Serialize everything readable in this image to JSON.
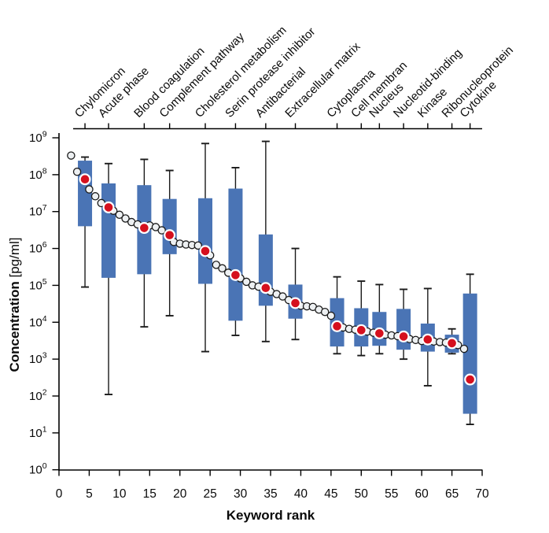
{
  "figure": {
    "xlabel": "Keyword rank",
    "ylabel_main": "Concentration",
    "ylabel_unit": "[pg/ml]"
  },
  "chart_data": {
    "type": "box",
    "title": "",
    "xlabel": "Keyword rank",
    "ylabel": "Concentration [pg/ml]",
    "x_axis": {
      "min": 0,
      "max": 70,
      "ticks": [
        0,
        5,
        10,
        15,
        20,
        25,
        30,
        35,
        40,
        45,
        50,
        55,
        60,
        65,
        70
      ]
    },
    "y_axis": {
      "scale": "log10",
      "min": 1,
      "max": 1000000000,
      "tick_exponents": [
        0,
        1,
        2,
        3,
        4,
        5,
        6,
        7,
        8,
        9
      ]
    },
    "grid": false,
    "legend": false,
    "colors": {
      "box_fill": "#4a74b5",
      "whisker": "#1a1a1a",
      "median_dot": "#d5101e",
      "median_ring": "#ffffff",
      "trend_fill": "#edf0f2",
      "trend_edge": "#1a1a1a",
      "axis": "#000000"
    },
    "categories": [
      "Chylomicron",
      "Acute phase",
      "Blood coagulation",
      "Complement pathway",
      "Cholesterol metabolism",
      "Serin protease inhibitor",
      "Antibacterial",
      "Extracellular matrix",
      "Cytoplasma",
      "Cell membran",
      "Nucleus",
      "Nucleotid-binding",
      "Kinase",
      "Ribonucleoprotein",
      "Cytokine"
    ],
    "boxes": [
      {
        "category": "Chylomicron",
        "rank": 4.3,
        "whisker_low": 90000.0,
        "q1": 4000000.0,
        "median": 75000000.0,
        "q3": 240000000.0,
        "whisker_high": 300000000.0
      },
      {
        "category": "Acute phase",
        "rank": 8.2,
        "whisker_low": 110.0,
        "q1": 160000.0,
        "median": 13000000.0,
        "q3": 58000000.0,
        "whisker_high": 200000000.0
      },
      {
        "category": "Blood coagulation",
        "rank": 14.1,
        "whisker_low": 7500.0,
        "q1": 200000.0,
        "median": 3600000.0,
        "q3": 52000000.0,
        "whisker_high": 260000000.0
      },
      {
        "category": "Complement pathway",
        "rank": 18.3,
        "whisker_low": 15000.0,
        "q1": 700000.0,
        "median": 2300000.0,
        "q3": 22000000.0,
        "whisker_high": 130000000.0
      },
      {
        "category": "Cholesterol metabolism",
        "rank": 24.2,
        "whisker_low": 1600.0,
        "q1": 110000.0,
        "median": 850000.0,
        "q3": 23000000.0,
        "whisker_high": 700000000.0
      },
      {
        "category": "Serin protease inhibitor",
        "rank": 29.2,
        "whisker_low": 4400.0,
        "q1": 11000.0,
        "median": 190000.0,
        "q3": 42000000.0,
        "whisker_high": 155000000.0
      },
      {
        "category": "Antibacterial",
        "rank": 34.2,
        "whisker_low": 3000.0,
        "q1": 28000.0,
        "median": 85000.0,
        "q3": 2400000.0,
        "whisker_high": 800000000.0
      },
      {
        "category": "Extracellular matrix",
        "rank": 39.1,
        "whisker_low": 3400.0,
        "q1": 12500.0,
        "median": 33000.0,
        "q3": 105000.0,
        "whisker_high": 1000000.0
      },
      {
        "category": "Cytoplasma",
        "rank": 46.0,
        "whisker_low": 1400.0,
        "q1": 2200.0,
        "median": 7800.0,
        "q3": 45000.0,
        "whisker_high": 170000.0
      },
      {
        "category": "Cell membran",
        "rank": 50.0,
        "whisker_low": 1250.0,
        "q1": 2200.0,
        "median": 6100.0,
        "q3": 24000.0,
        "whisker_high": 130000.0
      },
      {
        "category": "Nucleus",
        "rank": 53.0,
        "whisker_low": 1400.0,
        "q1": 2300.0,
        "median": 5000.0,
        "q3": 19000.0,
        "whisker_high": 105000.0
      },
      {
        "category": "Nucleotid-binding",
        "rank": 57.0,
        "whisker_low": 1000.0,
        "q1": 1800.0,
        "median": 4100.0,
        "q3": 23000.0,
        "whisker_high": 78000.0
      },
      {
        "category": "Kinase",
        "rank": 61.0,
        "whisker_low": 190.0,
        "q1": 1600.0,
        "median": 3400.0,
        "q3": 9200.0,
        "whisker_high": 82000.0
      },
      {
        "category": "Ribonucleoprotein",
        "rank": 65.0,
        "whisker_low": 1400.0,
        "q1": 1500.0,
        "median": 2700.0,
        "q3": 4600.0,
        "whisker_high": 6600.0
      },
      {
        "category": "Cytokine",
        "rank": 68.0,
        "whisker_low": 17.0,
        "q1": 33.0,
        "median": 280.0,
        "q3": 60000.0,
        "whisker_high": 200000.0
      }
    ],
    "trend_points": [
      [
        2,
        330000000.0
      ],
      [
        3,
        120000000.0
      ],
      [
        5,
        40000000.0
      ],
      [
        6,
        26000000.0
      ],
      [
        7,
        17000000.0
      ],
      [
        9,
        10500000.0
      ],
      [
        10,
        8200000.0
      ],
      [
        11,
        6500000.0
      ],
      [
        12,
        5200000.0
      ],
      [
        13,
        4500000.0
      ],
      [
        15,
        4200000.0
      ],
      [
        16,
        3800000.0
      ],
      [
        17,
        3100000.0
      ],
      [
        19,
        1500000.0
      ],
      [
        20,
        1350000.0
      ],
      [
        21,
        1280000.0
      ],
      [
        22,
        1240000.0
      ],
      [
        23,
        1200000.0
      ],
      [
        25,
        650000.0
      ],
      [
        26,
        360000.0
      ],
      [
        27,
        290000.0
      ],
      [
        28,
        220000.0
      ],
      [
        30,
        155000.0
      ],
      [
        31,
        125000.0
      ],
      [
        32,
        100000.0
      ],
      [
        33,
        92000.0
      ],
      [
        35,
        67000.0
      ],
      [
        36,
        58000.0
      ],
      [
        37,
        50000.0
      ],
      [
        38,
        40000.0
      ],
      [
        40,
        28000.0
      ],
      [
        41,
        27000.0
      ],
      [
        42,
        26000.0
      ],
      [
        43,
        22000.0
      ],
      [
        44,
        19000.0
      ],
      [
        45,
        15000.0
      ],
      [
        47,
        7200.0
      ],
      [
        48,
        6600.0
      ],
      [
        49,
        6300.0
      ],
      [
        51,
        5600.0
      ],
      [
        52,
        5200.0
      ],
      [
        54,
        4600.0
      ],
      [
        55,
        4400.0
      ],
      [
        56,
        4200.0
      ],
      [
        58,
        3500.0
      ],
      [
        59,
        3300.0
      ],
      [
        60,
        3100.0
      ],
      [
        62,
        3000.0
      ],
      [
        63,
        2900.0
      ],
      [
        64,
        2800.0
      ],
      [
        66,
        2400.0
      ],
      [
        67,
        1900.0
      ]
    ]
  }
}
